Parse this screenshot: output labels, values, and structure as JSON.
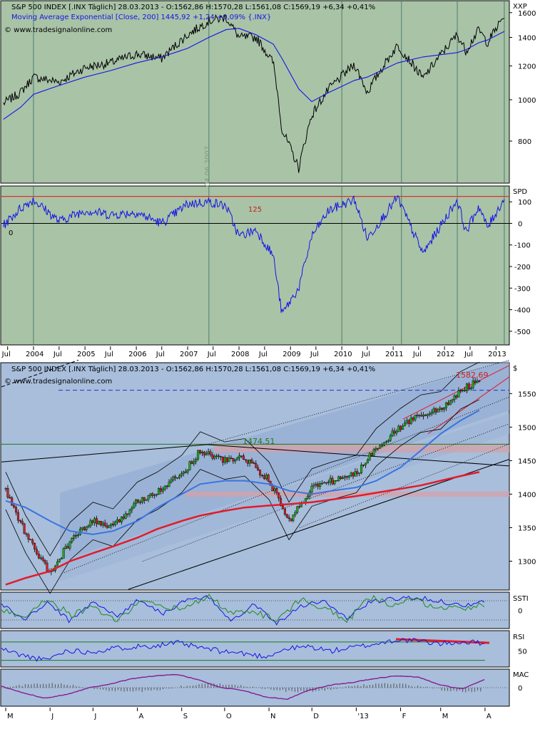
{
  "colors": {
    "pane_green": "#a9c3a7",
    "pane_blue": "#a8bedb",
    "price_line": "#000000",
    "ema_blue": "#1414e6",
    "ref_red": "#e03030",
    "ma_red": "#e21b2c",
    "ma_blue_light": "#3a74e0",
    "stoch_green": "#1f8a1f",
    "macd_purple": "#8b1a8b",
    "level_green": "#1e7a1e"
  },
  "chart_data": [
    {
      "type": "line",
      "pane": "XXP",
      "legend": [
        "S&P 500 INDEX [.INX  Täglich] 28.03.2013 - O:1562,86 H:1570,28 L:1561,08 C:1569,19 +6,34 +0,41%",
        "Moving Average Exponential [Close, 200] 1445,92 +1,24 +0,09% {.INX}",
        "© www.tradesignalonline.com"
      ],
      "axis_label": "XXP",
      "y_ticks": [
        "1600",
        "1400",
        "1200",
        "1000",
        "800"
      ],
      "y_scale": "log",
      "ylim": [
        640,
        1700
      ],
      "watermark": "04.06.2007",
      "x": [
        "2003-06",
        "2003-10",
        "2004-01",
        "2004-07",
        "2005-01",
        "2005-07",
        "2006-01",
        "2006-07",
        "2007-01",
        "2007-06",
        "2007-10",
        "2008-01",
        "2008-05",
        "2008-09",
        "2008-11",
        "2009-03",
        "2009-06",
        "2009-10",
        "2010-04",
        "2010-07",
        "2011-02",
        "2011-08",
        "2012-04",
        "2012-06",
        "2012-09",
        "2012-11",
        "2013-03"
      ],
      "series": [
        {
          "name": "S&P 500 INDEX",
          "values": [
            980,
            1040,
            1130,
            1100,
            1190,
            1220,
            1280,
            1250,
            1420,
            1530,
            1560,
            1400,
            1400,
            1220,
            850,
            690,
            920,
            1060,
            1210,
            1040,
            1340,
            1120,
            1420,
            1300,
            1460,
            1360,
            1569
          ]
        },
        {
          "name": "Moving Average Exponential",
          "values": [
            900,
            960,
            1030,
            1080,
            1130,
            1170,
            1220,
            1260,
            1320,
            1400,
            1460,
            1470,
            1420,
            1350,
            1250,
            1060,
            990,
            1040,
            1110,
            1130,
            1220,
            1260,
            1290,
            1310,
            1360,
            1380,
            1446
          ]
        }
      ],
      "x_ticks": [
        "Jul",
        "2004",
        "Jul",
        "2005",
        "Jul",
        "2006",
        "Jul",
        "2007",
        "Jul",
        "2008",
        "Jul",
        "2009",
        "Jul",
        "2010",
        "Jul",
        "2011",
        "Jul",
        "2012",
        "Jul",
        "2013"
      ]
    },
    {
      "type": "line",
      "pane": "SPD",
      "axis_label": "SPD",
      "y_ticks": [
        "100",
        "0",
        "-100",
        "-200",
        "-300",
        "-400",
        "-500"
      ],
      "ylim": [
        -560,
        170
      ],
      "reference_levels": [
        {
          "value": 125,
          "label": "125"
        },
        {
          "value": 0,
          "label": "0"
        }
      ],
      "x": [
        "2003-06",
        "2003-10",
        "2004-01",
        "2004-07",
        "2005-01",
        "2005-07",
        "2006-01",
        "2006-07",
        "2007-01",
        "2007-06",
        "2007-10",
        "2008-01",
        "2008-05",
        "2008-09",
        "2008-11",
        "2009-03",
        "2009-06",
        "2009-10",
        "2010-04",
        "2010-07",
        "2011-02",
        "2011-08",
        "2012-04",
        "2012-06",
        "2012-09",
        "2012-11",
        "2013-03"
      ],
      "series": [
        {
          "name": "SPD",
          "values": [
            -10,
            70,
            110,
            10,
            60,
            40,
            50,
            0,
            90,
            100,
            80,
            -60,
            -30,
            -150,
            -420,
            -300,
            -60,
            60,
            110,
            -70,
            120,
            -140,
            110,
            -40,
            80,
            -20,
            115
          ]
        }
      ]
    },
    {
      "type": "candlestick",
      "pane": "price",
      "legend": [
        "S&P 500 INDEX [.INX  Täglich] 28.03.2013 - O:1562,86 H:1570,28 L:1561,08 C:1569,19 +6,34 +0,41%",
        "© www.tradesignalonline.com"
      ],
      "axis_label": "$",
      "y_ticks": [
        "1550",
        "1500",
        "1450",
        "1400",
        "1350",
        "1300"
      ],
      "ylim": [
        1258,
        1595
      ],
      "annotations": [
        {
          "label": "1582,69",
          "value": 1582.69
        },
        {
          "label": "1474,51",
          "value": 1474.51
        }
      ],
      "x": [
        "2012-05-01",
        "2012-05-15",
        "2012-06-01",
        "2012-06-15",
        "2012-07-01",
        "2012-07-15",
        "2012-08-01",
        "2012-08-15",
        "2012-09-01",
        "2012-09-14",
        "2012-10-01",
        "2012-10-15",
        "2012-11-01",
        "2012-11-15",
        "2012-12-01",
        "2012-12-15",
        "2013-01-01",
        "2013-01-15",
        "2013-02-01",
        "2013-02-15",
        "2013-03-01",
        "2013-03-15",
        "2013-03-28"
      ],
      "series": [
        {
          "name": "Close",
          "values": [
            1405,
            1340,
            1280,
            1330,
            1360,
            1350,
            1390,
            1405,
            1430,
            1465,
            1450,
            1455,
            1420,
            1360,
            1410,
            1420,
            1430,
            1470,
            1500,
            1520,
            1525,
            1555,
            1569
          ]
        },
        {
          "name": "MA blue",
          "values": [
            1390,
            1380,
            1360,
            1345,
            1340,
            1345,
            1360,
            1380,
            1400,
            1415,
            1420,
            1420,
            1415,
            1405,
            1400,
            1405,
            1410,
            1420,
            1440,
            1465,
            1490,
            1510,
            1525
          ]
        },
        {
          "name": "MA red",
          "values": [
            1265,
            1275,
            1285,
            1300,
            1312,
            1322,
            1335,
            1348,
            1360,
            1368,
            1375,
            1380,
            1383,
            1385,
            1388,
            1392,
            1397,
            1402,
            1408,
            1413,
            1420,
            1427,
            1433
          ]
        }
      ],
      "x_ticks": [
        "M",
        "J",
        "J",
        "A",
        "S",
        "O",
        "N",
        "D",
        "'13",
        "F",
        "M",
        "A"
      ]
    },
    {
      "type": "line",
      "pane": "SSTI",
      "axis_label": "SSTI",
      "y_ticks": [
        "0"
      ],
      "ylim": [
        -100,
        100
      ],
      "series": [
        {
          "name": "blue",
          "values": [
            40,
            -60,
            50,
            -70,
            60,
            -40,
            70,
            -20,
            60,
            80,
            -60,
            40,
            -80,
            30,
            60,
            -50,
            50,
            70,
            80,
            60,
            30,
            50
          ]
        },
        {
          "name": "green",
          "values": [
            0,
            -40,
            80,
            -30,
            20,
            -70,
            60,
            20,
            10,
            90,
            -20,
            -10,
            -60,
            70,
            20,
            -70,
            80,
            40,
            60,
            20,
            10,
            40
          ]
        }
      ]
    },
    {
      "type": "line",
      "pane": "RSI",
      "axis_label": "RSI",
      "y_ticks": [
        "50"
      ],
      "ylim": [
        20,
        90
      ],
      "reference_levels": [
        {
          "value": 70
        },
        {
          "value": 30
        }
      ],
      "series": [
        {
          "name": "RSI",
          "values": [
            55,
            40,
            30,
            52,
            48,
            55,
            60,
            62,
            68,
            58,
            50,
            45,
            38,
            55,
            60,
            50,
            58,
            65,
            75,
            72,
            66,
            70,
            68
          ]
        }
      ]
    },
    {
      "type": "line",
      "pane": "MAC",
      "axis_label": "MAC",
      "y_ticks": [
        "0"
      ],
      "ylim": [
        -25,
        25
      ],
      "series": [
        {
          "name": "MACD",
          "values": [
            2,
            -8,
            -16,
            -10,
            0,
            6,
            14,
            18,
            20,
            12,
            0,
            -4,
            -14,
            -18,
            -4,
            4,
            8,
            14,
            18,
            16,
            4,
            -2,
            12
          ]
        }
      ]
    }
  ]
}
